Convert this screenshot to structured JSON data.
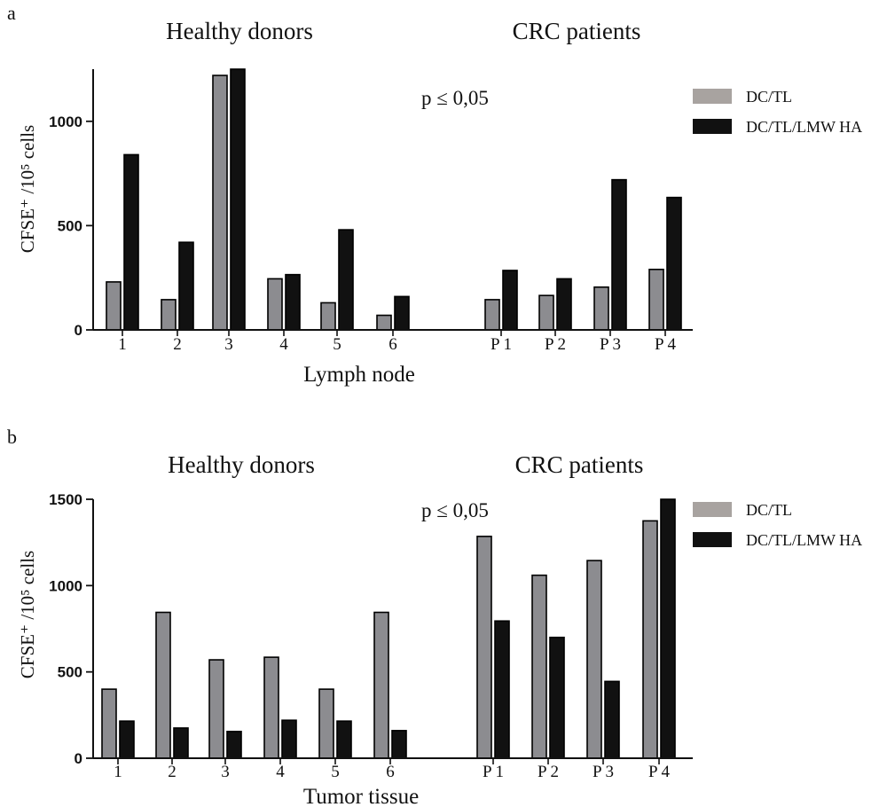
{
  "colors": {
    "series1": "#8c8c90",
    "series2": "#111111",
    "legend1": "#a8a3a0",
    "axis": "#111111"
  },
  "chart_data": [
    {
      "panel": "a",
      "type": "bar",
      "group_titles": [
        "Healthy donors",
        "CRC patients"
      ],
      "annotation": "p ≤ 0,05",
      "xlabel": "Lymph node",
      "ylabel": "CFSE⁺ /10⁵ cells",
      "ylim": [
        0,
        1250
      ],
      "yticks": [
        0,
        500,
        1000
      ],
      "categories": [
        "1",
        "2",
        "3",
        "4",
        "5",
        "6",
        "P 1",
        "P 2",
        "P 3",
        "P 4"
      ],
      "series": [
        {
          "name": "DC/TL",
          "values": [
            230,
            145,
            1220,
            245,
            130,
            70,
            145,
            165,
            205,
            290
          ]
        },
        {
          "name": "DC/TL/LMW HA",
          "values": [
            840,
            420,
            1250,
            265,
            480,
            160,
            285,
            245,
            720,
            635
          ]
        }
      ],
      "legend": {
        "position": "top-right",
        "entries": [
          "DC/TL",
          "DC/TL/LMW HA"
        ]
      },
      "grid": false
    },
    {
      "panel": "b",
      "type": "bar",
      "group_titles": [
        "Healthy donors",
        "CRC patients"
      ],
      "annotation": "p ≤ 0,05",
      "xlabel": "Tumor tissue",
      "ylabel": "CFSE⁺ /10⁵ cells",
      "ylim": [
        0,
        1500
      ],
      "yticks": [
        0,
        500,
        1000,
        1500
      ],
      "categories": [
        "1",
        "2",
        "3",
        "4",
        "5",
        "6",
        "P 1",
        "P 2",
        "P 3",
        "P 4"
      ],
      "series": [
        {
          "name": "DC/TL",
          "values": [
            400,
            845,
            570,
            585,
            400,
            845,
            1285,
            1060,
            1145,
            1375
          ]
        },
        {
          "name": "DC/TL/LMW HA",
          "values": [
            215,
            175,
            155,
            220,
            215,
            160,
            795,
            700,
            445,
            1500
          ]
        }
      ],
      "legend": {
        "position": "top-right",
        "entries": [
          "DC/TL",
          "DC/TL/LMW HA"
        ]
      },
      "grid": false
    }
  ]
}
